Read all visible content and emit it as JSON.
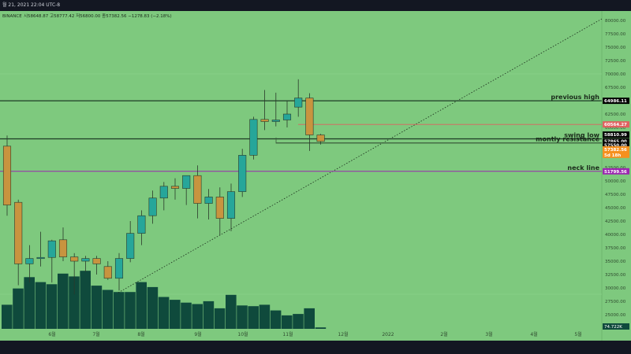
{
  "header": {
    "date_text": "월 21, 2021 22:04 UTC-8",
    "exchange": "BINANCE",
    "ohlc": "시58648.87  고58777.42  저56800.00  종57382.56  −1278.83 (−2.18%)"
  },
  "colors": {
    "background": "#7ec97e",
    "up": "#26a69a",
    "down": "#c8943f",
    "volume": "#0f4a3c",
    "neck_line": "#9c27b0",
    "resistance_red": "#e06060"
  },
  "chart_data": {
    "type": "candlestick",
    "y_axis": {
      "ticks": [
        "80000.00",
        "77500.00",
        "75000.00",
        "72500.00",
        "70000.00",
        "67500.00",
        "65000.00",
        "62500.00",
        "60000.00",
        "57500.00",
        "55000.00",
        "52500.00",
        "50000.00",
        "47500.00",
        "45000.00",
        "42500.00",
        "40000.00",
        "37500.00",
        "35000.00",
        "32500.00",
        "30000.00",
        "27500.00",
        "25000.00"
      ],
      "range": [
        22500,
        81000
      ]
    },
    "x_axis": {
      "ticks": [
        "6월",
        "7월",
        "8월",
        "9월",
        "10월",
        "11월",
        "12월",
        "2022",
        "2월",
        "3월",
        "4월",
        "5월"
      ]
    },
    "candles": [
      {
        "o": 56500,
        "h": 58500,
        "l": 43500,
        "c": 45500
      },
      {
        "o": 46000,
        "h": 46500,
        "l": 30500,
        "c": 34500
      },
      {
        "o": 34500,
        "h": 38000,
        "l": 31000,
        "c": 35500
      },
      {
        "o": 35500,
        "h": 40500,
        "l": 34000,
        "c": 35700
      },
      {
        "o": 35700,
        "h": 39000,
        "l": 31000,
        "c": 38800
      },
      {
        "o": 39000,
        "h": 41300,
        "l": 35000,
        "c": 35800
      },
      {
        "o": 35800,
        "h": 36500,
        "l": 28800,
        "c": 35000
      },
      {
        "o": 35000,
        "h": 36000,
        "l": 33000,
        "c": 35500
      },
      {
        "o": 35500,
        "h": 36000,
        "l": 32500,
        "c": 34500
      },
      {
        "o": 34000,
        "h": 35000,
        "l": 31500,
        "c": 31800
      },
      {
        "o": 31800,
        "h": 36500,
        "l": 29500,
        "c": 35500
      },
      {
        "o": 35500,
        "h": 42500,
        "l": 34800,
        "c": 40200
      },
      {
        "o": 40200,
        "h": 44500,
        "l": 38000,
        "c": 43500
      },
      {
        "o": 43500,
        "h": 48200,
        "l": 42000,
        "c": 46800
      },
      {
        "o": 46800,
        "h": 49800,
        "l": 44500,
        "c": 49000
      },
      {
        "o": 49000,
        "h": 50500,
        "l": 46500,
        "c": 48600
      },
      {
        "o": 48600,
        "h": 50500,
        "l": 45500,
        "c": 51000
      },
      {
        "o": 51000,
        "h": 52900,
        "l": 43000,
        "c": 45800
      },
      {
        "o": 45800,
        "h": 48500,
        "l": 42800,
        "c": 47000
      },
      {
        "o": 47000,
        "h": 48800,
        "l": 39800,
        "c": 43000
      },
      {
        "o": 43000,
        "h": 49500,
        "l": 40600,
        "c": 48000
      },
      {
        "o": 48000,
        "h": 56000,
        "l": 47000,
        "c": 54800
      },
      {
        "o": 54800,
        "h": 62000,
        "l": 54000,
        "c": 61500
      },
      {
        "o": 61500,
        "h": 67000,
        "l": 59500,
        "c": 61100
      },
      {
        "o": 61100,
        "h": 66500,
        "l": 60200,
        "c": 61400
      },
      {
        "o": 61400,
        "h": 65000,
        "l": 60000,
        "c": 62500
      },
      {
        "o": 63800,
        "h": 69000,
        "l": 62000,
        "c": 65500
      },
      {
        "o": 65500,
        "h": 66400,
        "l": 55600,
        "c": 58600
      },
      {
        "o": 58600,
        "h": 58800,
        "l": 56800,
        "c": 57382
      }
    ],
    "volume": [
      0.34,
      0.57,
      0.73,
      0.66,
      0.63,
      0.78,
      0.74,
      0.82,
      0.61,
      0.55,
      0.52,
      0.52,
      0.66,
      0.59,
      0.45,
      0.41,
      0.37,
      0.35,
      0.39,
      0.29,
      0.48,
      0.33,
      0.32,
      0.34,
      0.26,
      0.19,
      0.21,
      0.29,
      0.02
    ],
    "horizontal_lines": [
      {
        "price": 64986.11,
        "label": "previous high",
        "color": "#1d3b26",
        "tag": "64986.11"
      },
      {
        "price": 57865.0,
        "label": "swing low",
        "color": "#1d3b26",
        "tag": "57865.00"
      },
      {
        "price": 57100.0,
        "label": "montly resistance",
        "color": "#3b5a3b",
        "tag": ""
      },
      {
        "price": 51799.56,
        "label": "neck line",
        "color": "#9c27b0",
        "tag": "51799.56"
      }
    ],
    "price_tags": [
      {
        "value": "60564.27",
        "bg": "#e06060",
        "fg": "#ffffff"
      },
      {
        "value": "58810.99",
        "bg": "#000000",
        "fg": "#ffffff"
      },
      {
        "value": "57865.00",
        "bg": "#000000",
        "fg": "#ffffff"
      },
      {
        "value": "57550.00",
        "bg": "#000000",
        "fg": "#ffffff"
      },
      {
        "value": "57382.56",
        "bg": "#f5901e",
        "fg": "#ffffff"
      },
      {
        "value": "5d 18h",
        "bg": "#f5901e",
        "fg": "#ffffff"
      },
      {
        "value": "51799.56",
        "bg": "#9c27b0",
        "fg": "#ffffff"
      }
    ],
    "volume_tag": "74.722K"
  }
}
